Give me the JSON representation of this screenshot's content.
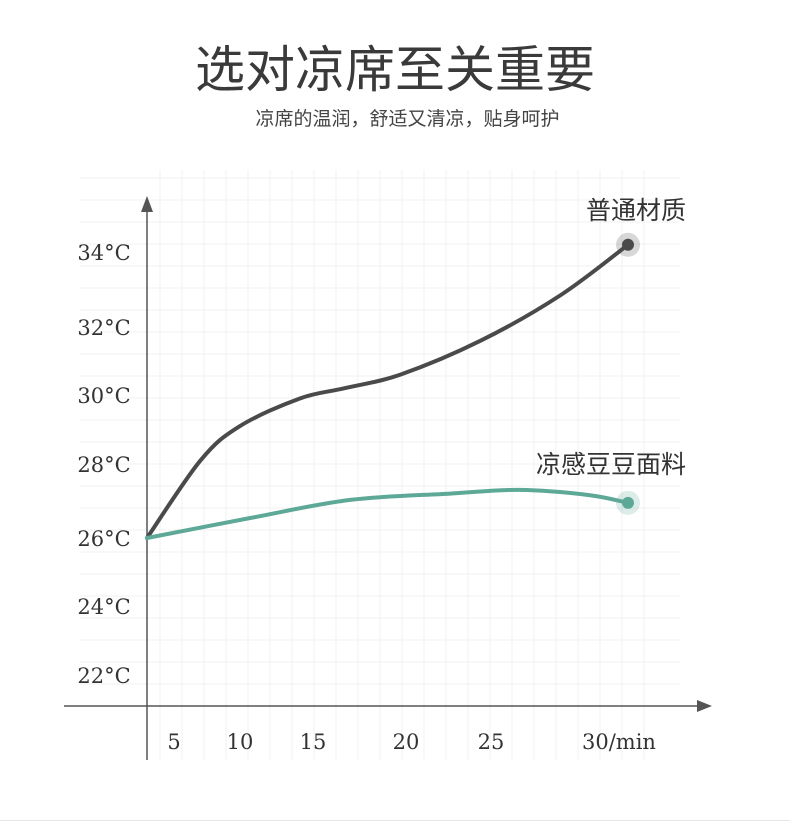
{
  "header": {
    "title": "选对凉席至关重要",
    "subtitle": "凉席的温润，舒适又清凉，贴身呵护"
  },
  "chart_data": {
    "type": "line",
    "title": "选对凉席至关重要",
    "subtitle": "凉席的温润，舒适又清凉，贴身呵护",
    "xlabel": "min",
    "ylabel": "°C",
    "x_ticks": [
      5,
      10,
      15,
      20,
      25,
      30
    ],
    "x_tick_labels": [
      "5",
      "10",
      "15",
      "20",
      "25",
      "30/min"
    ],
    "y_ticks": [
      22,
      24,
      26,
      28,
      30,
      32,
      34
    ],
    "y_tick_labels": [
      "22°C",
      "24°C",
      "26°C",
      "28°C",
      "30°C",
      "32°C",
      "34°C"
    ],
    "grid": true,
    "series": [
      {
        "name": "普通材质",
        "color": "#4a4a4a",
        "points": [
          [
            0,
            26
          ],
          [
            7,
            28.1
          ],
          [
            10,
            29.1
          ],
          [
            14.1,
            29.9
          ],
          [
            16.7,
            30.2
          ],
          [
            19.7,
            30.6
          ],
          [
            24.4,
            31.6
          ],
          [
            27.7,
            32.85
          ],
          [
            30.4,
            34.2
          ]
        ]
      },
      {
        "name": "凉感豆豆面料",
        "color": "#5ea898",
        "points": [
          [
            0,
            26
          ],
          [
            10.7,
            26.54
          ],
          [
            17,
            27.03
          ],
          [
            22.6,
            27.2
          ],
          [
            26.1,
            27.3
          ],
          [
            28.8,
            27.16
          ],
          [
            30.4,
            26.95
          ]
        ]
      }
    ]
  }
}
